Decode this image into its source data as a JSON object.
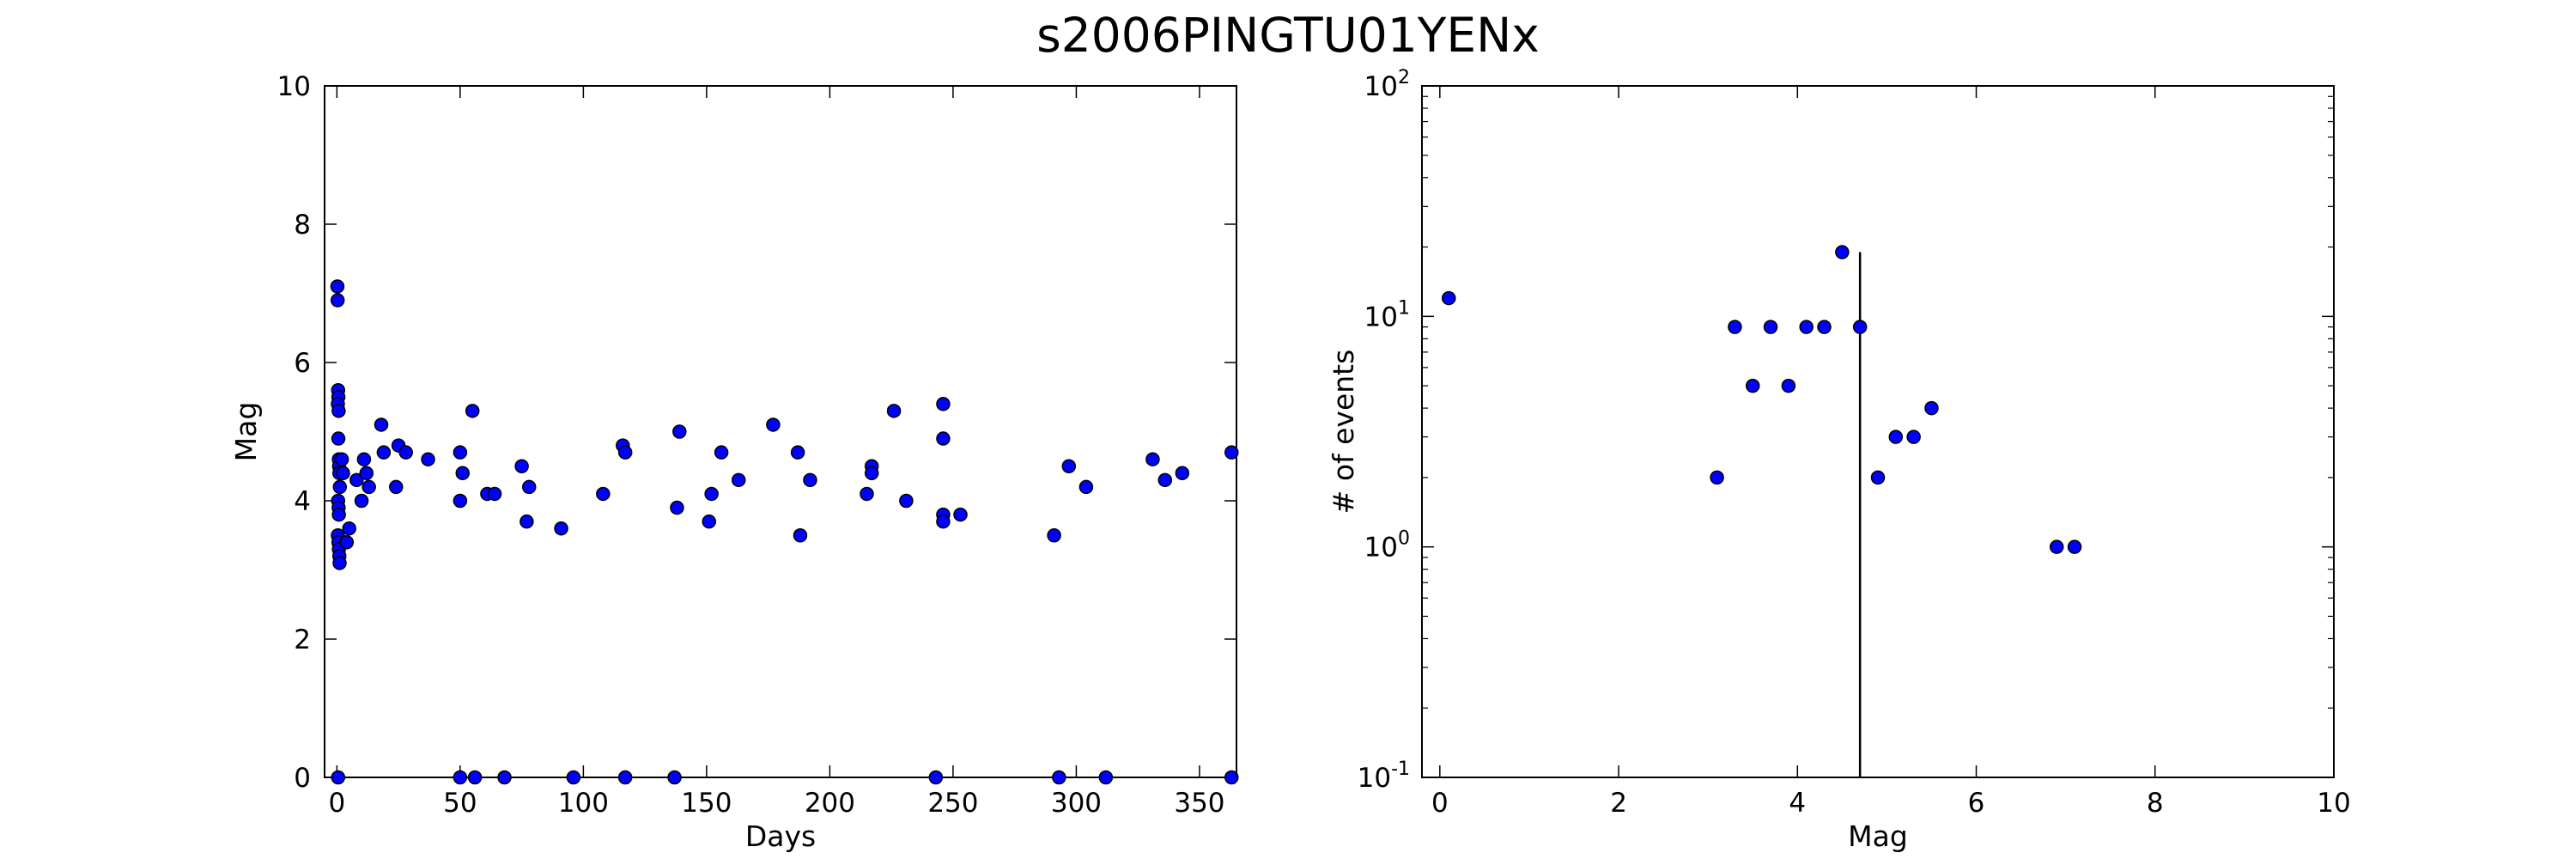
{
  "figure": {
    "title": "s2006PINGTU01YENx"
  },
  "colors": {
    "marker_fill": "#0000ff",
    "marker_edge": "#000000",
    "axes": "#000000",
    "background": "#ffffff"
  },
  "chart_data": [
    {
      "type": "scatter",
      "title": "",
      "xlabel": "Days",
      "ylabel": "Mag",
      "xlim": [
        -5,
        365
      ],
      "ylim": [
        0,
        10
      ],
      "xticks": [
        0,
        50,
        100,
        150,
        200,
        250,
        300,
        350
      ],
      "yticks": [
        0,
        2,
        4,
        6,
        8,
        10
      ],
      "xtick_labels": [
        "0",
        "50",
        "100",
        "150",
        "200",
        "250",
        "300",
        "350"
      ],
      "ytick_labels": [
        "0",
        "2",
        "4",
        "6",
        "8",
        "10"
      ],
      "grid": false,
      "points": [
        [
          0.2,
          7.1
        ],
        [
          0.3,
          6.9
        ],
        [
          0.5,
          5.6
        ],
        [
          0.6,
          5.5
        ],
        [
          0.4,
          5.4
        ],
        [
          0.7,
          5.3
        ],
        [
          0.6,
          4.9
        ],
        [
          0.8,
          4.6
        ],
        [
          0.9,
          4.5
        ],
        [
          1.0,
          4.4
        ],
        [
          1.2,
          4.2
        ],
        [
          0.5,
          4.0
        ],
        [
          0.7,
          3.9
        ],
        [
          0.8,
          3.8
        ],
        [
          0.4,
          3.5
        ],
        [
          0.6,
          3.4
        ],
        [
          0.8,
          3.3
        ],
        [
          1.0,
          3.2
        ],
        [
          1.1,
          3.1
        ],
        [
          2,
          4.6
        ],
        [
          2.5,
          4.4
        ],
        [
          4,
          3.4
        ],
        [
          5,
          3.6
        ],
        [
          8,
          4.3
        ],
        [
          10,
          4.0
        ],
        [
          11,
          4.6
        ],
        [
          12,
          4.4
        ],
        [
          13,
          4.2
        ],
        [
          18,
          5.1
        ],
        [
          19,
          4.7
        ],
        [
          24,
          4.2
        ],
        [
          25,
          4.8
        ],
        [
          28,
          4.7
        ],
        [
          37,
          4.6
        ],
        [
          50,
          4.7
        ],
        [
          51,
          4.4
        ],
        [
          50,
          4.0
        ],
        [
          55,
          5.3
        ],
        [
          61,
          4.1
        ],
        [
          64,
          4.1
        ],
        [
          75,
          4.5
        ],
        [
          77,
          3.7
        ],
        [
          78,
          4.2
        ],
        [
          91,
          3.6
        ],
        [
          108,
          4.1
        ],
        [
          116,
          4.8
        ],
        [
          117,
          4.7
        ],
        [
          139,
          5.0
        ],
        [
          138,
          3.9
        ],
        [
          152,
          4.1
        ],
        [
          151,
          3.7
        ],
        [
          156,
          4.7
        ],
        [
          163,
          4.3
        ],
        [
          177,
          5.1
        ],
        [
          187,
          4.7
        ],
        [
          188,
          3.5
        ],
        [
          192,
          4.3
        ],
        [
          215,
          4.1
        ],
        [
          217,
          4.5
        ],
        [
          217,
          4.4
        ],
        [
          226,
          5.3
        ],
        [
          231,
          4.0
        ],
        [
          246,
          5.4
        ],
        [
          246,
          4.9
        ],
        [
          246,
          3.8
        ],
        [
          246,
          3.7
        ],
        [
          253,
          3.8
        ],
        [
          291,
          3.5
        ],
        [
          297,
          4.5
        ],
        [
          304,
          4.2
        ],
        [
          331,
          4.6
        ],
        [
          336,
          4.3
        ],
        [
          343,
          4.4
        ],
        [
          363,
          4.7
        ],
        [
          0.5,
          0
        ],
        [
          50,
          0
        ],
        [
          56,
          0
        ],
        [
          68,
          0
        ],
        [
          96,
          0
        ],
        [
          117,
          0
        ],
        [
          137,
          0
        ],
        [
          243,
          0
        ],
        [
          293,
          0
        ],
        [
          312,
          0
        ],
        [
          363,
          0
        ]
      ]
    },
    {
      "type": "scatter",
      "title": "",
      "xlabel": "Mag",
      "ylabel": "# of events",
      "xlim": [
        -0.2,
        10
      ],
      "ylim": [
        0.1,
        100
      ],
      "yscale": "log",
      "xticks": [
        0,
        2,
        4,
        6,
        8,
        10
      ],
      "xtick_labels": [
        "0",
        "2",
        "4",
        "6",
        "8",
        "10"
      ],
      "yticks": [
        0.1,
        1,
        10,
        100
      ],
      "ytick_labels": [
        {
          "base": "10",
          "exp": "-1"
        },
        {
          "base": "10",
          "exp": "0"
        },
        {
          "base": "10",
          "exp": "1"
        },
        {
          "base": "10",
          "exp": "2"
        }
      ],
      "grid": false,
      "points": [
        [
          0.1,
          12
        ],
        [
          3.1,
          2
        ],
        [
          3.3,
          9
        ],
        [
          3.5,
          5
        ],
        [
          3.7,
          9
        ],
        [
          3.9,
          5
        ],
        [
          4.1,
          9
        ],
        [
          4.3,
          9
        ],
        [
          4.5,
          19
        ],
        [
          4.7,
          9
        ],
        [
          4.9,
          2
        ],
        [
          5.1,
          3
        ],
        [
          5.3,
          3
        ],
        [
          5.5,
          4
        ],
        [
          6.9,
          1
        ],
        [
          7.1,
          1
        ]
      ],
      "vline": {
        "x": 4.7,
        "y_top": 19
      }
    }
  ]
}
